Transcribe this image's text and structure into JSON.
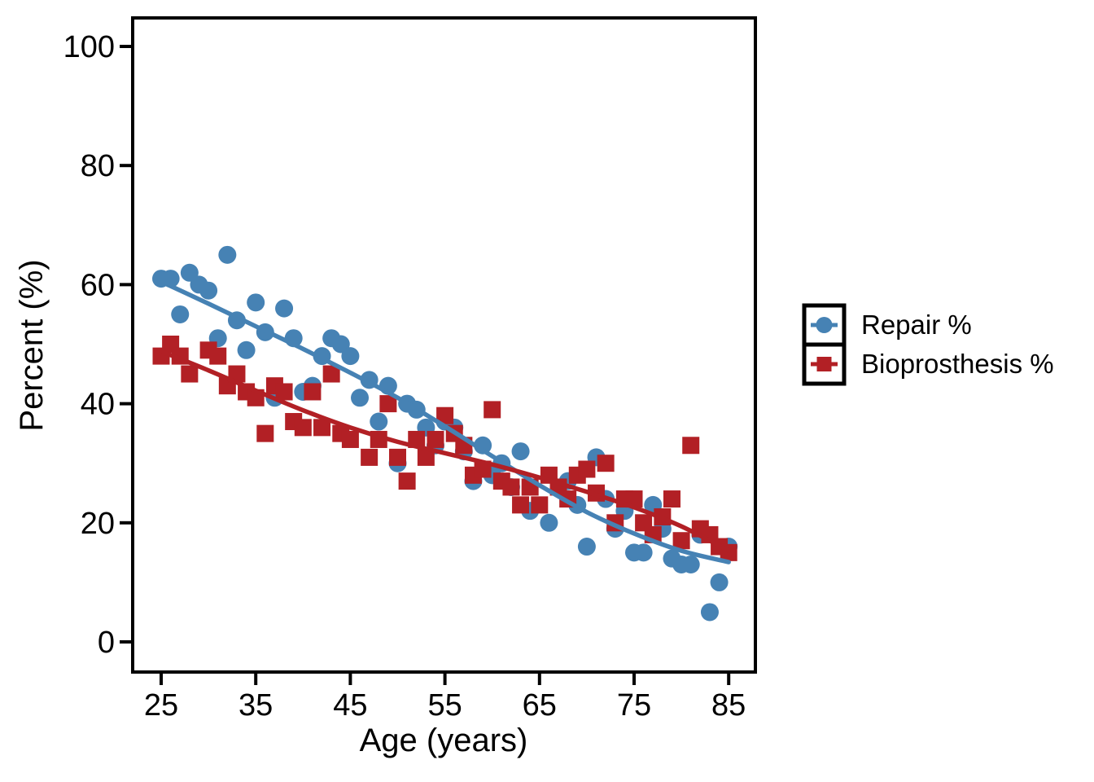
{
  "figure": {
    "background": "#ffffff"
  },
  "legend": {
    "items": [
      {
        "label": "Repair %",
        "marker": "circle",
        "color": "#4682B4"
      },
      {
        "label": "Bioprosthesis %",
        "marker": "square",
        "color": "#B22025"
      }
    ]
  },
  "chart_data": {
    "type": "scatter",
    "title": "",
    "xlabel": "Age (years)",
    "ylabel": "Percent (%)",
    "x_ticks": [
      25,
      35,
      45,
      55,
      65,
      75,
      85
    ],
    "y_ticks": [
      0,
      20,
      40,
      60,
      80,
      100
    ],
    "xlim": [
      22,
      88
    ],
    "ylim": [
      -6,
      105
    ],
    "grid": false,
    "legend_position": "right",
    "series": [
      {
        "name": "Repair %",
        "marker": "circle",
        "color": "#4682B4",
        "points": [
          [
            25,
            61
          ],
          [
            26,
            61
          ],
          [
            27,
            55
          ],
          [
            28,
            62
          ],
          [
            29,
            60
          ],
          [
            30,
            59
          ],
          [
            31,
            51
          ],
          [
            32,
            65
          ],
          [
            33,
            54
          ],
          [
            34,
            49
          ],
          [
            35,
            57
          ],
          [
            36,
            52
          ],
          [
            37,
            41
          ],
          [
            38,
            56
          ],
          [
            39,
            51
          ],
          [
            40,
            42
          ],
          [
            41,
            43
          ],
          [
            42,
            48
          ],
          [
            43,
            51
          ],
          [
            44,
            50
          ],
          [
            45,
            48
          ],
          [
            46,
            41
          ],
          [
            47,
            44
          ],
          [
            48,
            37
          ],
          [
            49,
            43
          ],
          [
            50,
            30
          ],
          [
            51,
            40
          ],
          [
            52,
            39
          ],
          [
            53,
            36
          ],
          [
            54,
            33
          ],
          [
            55,
            37
          ],
          [
            56,
            36
          ],
          [
            57,
            32
          ],
          [
            58,
            27
          ],
          [
            59,
            33
          ],
          [
            60,
            28
          ],
          [
            61,
            30
          ],
          [
            62,
            26
          ],
          [
            63,
            32
          ],
          [
            64,
            22
          ],
          [
            66,
            20
          ],
          [
            68,
            27
          ],
          [
            69,
            23
          ],
          [
            70,
            16
          ],
          [
            71,
            31
          ],
          [
            72,
            24
          ],
          [
            73,
            19
          ],
          [
            74,
            22
          ],
          [
            75,
            15
          ],
          [
            76,
            15
          ],
          [
            77,
            23
          ],
          [
            78,
            19
          ],
          [
            79,
            14
          ],
          [
            80,
            13
          ],
          [
            81,
            13
          ],
          [
            82,
            18
          ],
          [
            83,
            5
          ],
          [
            84,
            10
          ],
          [
            85,
            16
          ]
        ],
        "trend": [
          [
            25,
            60.5
          ],
          [
            30,
            56.8
          ],
          [
            35,
            53
          ],
          [
            40,
            49.2
          ],
          [
            45,
            45.2
          ],
          [
            50,
            41
          ],
          [
            55,
            36.2
          ],
          [
            60,
            31.2
          ],
          [
            65,
            26.3
          ],
          [
            70,
            21.8
          ],
          [
            75,
            18.2
          ],
          [
            80,
            15.3
          ],
          [
            85,
            13.4
          ]
        ]
      },
      {
        "name": "Bioprosthesis %",
        "marker": "square",
        "color": "#B22025",
        "points": [
          [
            25,
            48
          ],
          [
            26,
            50
          ],
          [
            27,
            48
          ],
          [
            28,
            45
          ],
          [
            30,
            49
          ],
          [
            31,
            48
          ],
          [
            32,
            43
          ],
          [
            33,
            45
          ],
          [
            34,
            42
          ],
          [
            35,
            41
          ],
          [
            36,
            35
          ],
          [
            37,
            43
          ],
          [
            38,
            42
          ],
          [
            39,
            37
          ],
          [
            40,
            36
          ],
          [
            41,
            42
          ],
          [
            42,
            36
          ],
          [
            43,
            45
          ],
          [
            44,
            35
          ],
          [
            45,
            34
          ],
          [
            47,
            31
          ],
          [
            48,
            34
          ],
          [
            49,
            40
          ],
          [
            50,
            31
          ],
          [
            51,
            27
          ],
          [
            52,
            34
          ],
          [
            53,
            31
          ],
          [
            54,
            34
          ],
          [
            55,
            38
          ],
          [
            56,
            35
          ],
          [
            57,
            33
          ],
          [
            58,
            28
          ],
          [
            59,
            29
          ],
          [
            60,
            39
          ],
          [
            61,
            27
          ],
          [
            62,
            26
          ],
          [
            63,
            23
          ],
          [
            64,
            26
          ],
          [
            65,
            23
          ],
          [
            66,
            28
          ],
          [
            67,
            26
          ],
          [
            68,
            24
          ],
          [
            69,
            28
          ],
          [
            70,
            29
          ],
          [
            71,
            25
          ],
          [
            72,
            30
          ],
          [
            73,
            20
          ],
          [
            74,
            24
          ],
          [
            75,
            24
          ],
          [
            76,
            20
          ],
          [
            77,
            18
          ],
          [
            78,
            21
          ],
          [
            79,
            24
          ],
          [
            80,
            17
          ],
          [
            81,
            33
          ],
          [
            82,
            19
          ],
          [
            83,
            18
          ],
          [
            84,
            16
          ],
          [
            85,
            15
          ]
        ],
        "trend": [
          [
            25,
            48.8
          ],
          [
            30,
            45.6
          ],
          [
            35,
            42.2
          ],
          [
            40,
            38.9
          ],
          [
            45,
            36
          ],
          [
            50,
            33.6
          ],
          [
            55,
            31.7
          ],
          [
            60,
            29.8
          ],
          [
            65,
            27.6
          ],
          [
            70,
            25.2
          ],
          [
            75,
            22.6
          ],
          [
            80,
            19.4
          ],
          [
            85,
            15.3
          ]
        ]
      }
    ]
  }
}
